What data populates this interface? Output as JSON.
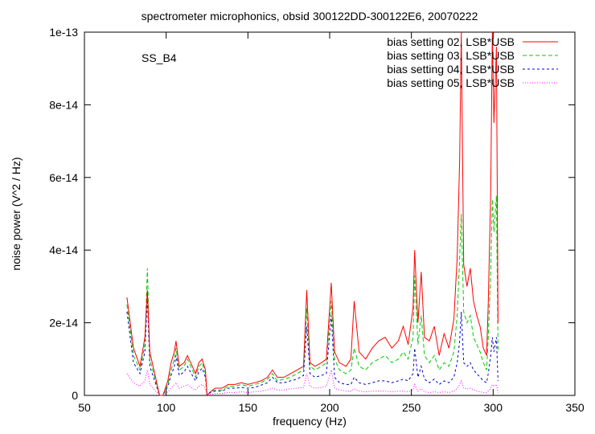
{
  "chart_data": {
    "type": "line",
    "title": "spectrometer microphonics, obsid 300122DD-300122E6, 20070222",
    "annotation": "SS_B4",
    "xlabel": "frequency (Hz)",
    "ylabel": "noise power (V^2 / Hz)",
    "xlim": [
      50,
      350
    ],
    "ylim": [
      0,
      1e-13
    ],
    "x_ticks": [
      50,
      100,
      150,
      200,
      250,
      300,
      350
    ],
    "x_tick_labels": [
      "50",
      "100",
      "150",
      "200",
      "250",
      "300",
      "350"
    ],
    "y_ticks": [
      0,
      2e-14,
      4e-14,
      6e-14,
      8e-14,
      1e-13
    ],
    "y_tick_labels": [
      "0",
      "2e-14",
      "4e-14",
      "6e-14",
      "8e-14",
      "1e-13"
    ],
    "grid": false,
    "legend_position": "top-right",
    "x": [
      76,
      80,
      84,
      87,
      88.5,
      90,
      93,
      96,
      98,
      101,
      103,
      105,
      106,
      108,
      111,
      113,
      116,
      118,
      120,
      122,
      124,
      125,
      127,
      130,
      134,
      138,
      142,
      146,
      150,
      154,
      158,
      162,
      165,
      168,
      172,
      176,
      180,
      184,
      186,
      188,
      191,
      195,
      198,
      201,
      203,
      206,
      210,
      213,
      215,
      218,
      222,
      226,
      230,
      234,
      238,
      242,
      245,
      248,
      251,
      252,
      254,
      256,
      258,
      261,
      264,
      267,
      270,
      273,
      276,
      278,
      279.5,
      280.5,
      282,
      284,
      286,
      288,
      290,
      292,
      294,
      296,
      297,
      298.5,
      299.5,
      300.5,
      302,
      303
    ],
    "series": [
      {
        "name": "bias setting 02, LSB*USB",
        "color": "#ff0000",
        "dash": "solid",
        "values": [
          2.7e-14,
          1.3e-14,
          8e-15,
          1.6e-14,
          2.9e-14,
          1.2e-14,
          6e-15,
          0,
          0,
          4e-15,
          9e-15,
          1.2e-14,
          1.5e-14,
          8e-15,
          9e-15,
          1.1e-14,
          8e-15,
          6e-15,
          9e-15,
          1e-14,
          7e-15,
          0,
          1e-15,
          2e-15,
          2e-15,
          3e-15,
          3e-15,
          3.5e-15,
          3e-15,
          3.5e-15,
          4e-15,
          5e-15,
          7e-15,
          5e-15,
          5e-15,
          6e-15,
          7e-15,
          8e-15,
          2.9e-14,
          9e-15,
          8e-15,
          9e-15,
          1e-14,
          3.1e-14,
          1.2e-14,
          9e-15,
          8e-15,
          1e-14,
          2.6e-14,
          1.2e-14,
          1e-14,
          1.3e-14,
          1.5e-14,
          1.6e-14,
          1.3e-14,
          1.5e-14,
          1.9e-14,
          1.4e-14,
          2.4e-14,
          4e-14,
          2e-14,
          3.4e-14,
          1.6e-14,
          1.5e-14,
          1.9e-14,
          1.1e-14,
          1.7e-14,
          1.3e-14,
          2.1e-14,
          3.8e-14,
          6.5e-14,
          1e-13,
          3.6e-14,
          3e-14,
          3.5e-14,
          2.6e-14,
          2.2e-14,
          1.9e-14,
          1.3e-14,
          1.1e-14,
          2.5e-14,
          5.6e-14,
          1e-13,
          7.5e-14,
          9.6e-14,
          2e-14
        ]
      },
      {
        "name": "bias setting 03, LSB*USB",
        "color": "#00cc00",
        "dash": "dash",
        "values": [
          2.5e-14,
          1.1e-14,
          7e-15,
          1.4e-14,
          3.5e-14,
          1e-14,
          5e-15,
          0,
          0,
          3e-15,
          7e-15,
          1e-14,
          1.3e-14,
          7e-15,
          8e-15,
          1e-14,
          7e-15,
          5e-15,
          8e-15,
          9e-15,
          6e-15,
          0,
          1e-15,
          1.5e-15,
          1.5e-15,
          2.5e-15,
          2.5e-15,
          3e-15,
          2.5e-15,
          3e-15,
          3.5e-15,
          4.5e-15,
          6e-15,
          4e-15,
          4.5e-15,
          5e-15,
          6e-15,
          7e-15,
          2.4e-14,
          8e-15,
          7e-15,
          8e-15,
          9e-15,
          2.6e-14,
          1e-14,
          7e-15,
          6e-15,
          7e-15,
          1.3e-14,
          8e-15,
          7e-15,
          9e-15,
          1e-14,
          1.1e-14,
          9e-15,
          1e-14,
          1.2e-14,
          1e-14,
          1.6e-14,
          3.3e-14,
          1.4e-14,
          2.2e-14,
          1.1e-14,
          9e-15,
          1.1e-14,
          7e-15,
          9e-15,
          8e-15,
          1.2e-14,
          2.2e-14,
          3.8e-14,
          5e-14,
          2.3e-14,
          2e-14,
          2.2e-14,
          1.6e-14,
          1.4e-14,
          1.2e-14,
          9e-15,
          7e-15,
          1.6e-14,
          3.4e-14,
          5.4e-14,
          4.5e-14,
          5.5e-14,
          1.2e-14
        ]
      },
      {
        "name": "bias setting 04, LSB*USB",
        "color": "#0000cc",
        "dash": "shortdash",
        "values": [
          2.3e-14,
          9e-15,
          6e-15,
          1.2e-14,
          2.7e-14,
          8e-15,
          4e-15,
          0,
          0,
          2.5e-15,
          5.5e-15,
          8e-15,
          1.1e-14,
          5.5e-15,
          6.5e-15,
          8e-15,
          5.5e-15,
          4e-15,
          6.5e-15,
          7.5e-15,
          5e-15,
          0,
          8e-16,
          1.2e-15,
          1.2e-15,
          2e-15,
          2e-15,
          2.2e-15,
          2e-15,
          2.2e-15,
          2.8e-15,
          3.5e-15,
          5e-15,
          3.5e-15,
          3.5e-15,
          4e-15,
          4.5e-15,
          5.5e-15,
          1.9e-14,
          6e-15,
          5e-15,
          5.5e-15,
          6e-15,
          2.2e-14,
          5e-15,
          3.5e-15,
          3e-15,
          3e-15,
          5e-15,
          3.5e-15,
          3e-15,
          3.5e-15,
          4e-15,
          4e-15,
          3.5e-15,
          4e-15,
          4.5e-15,
          4e-15,
          6e-15,
          1.3e-14,
          5e-15,
          8e-15,
          4.5e-15,
          3.5e-15,
          4.5e-15,
          3e-15,
          4e-15,
          3.5e-15,
          5e-15,
          9e-15,
          1.5e-14,
          2.3e-14,
          9e-15,
          8e-15,
          9e-15,
          7e-15,
          6e-15,
          5e-15,
          4e-15,
          3.5e-15,
          6e-15,
          1.1e-14,
          1.6e-14,
          1.2e-14,
          1.6e-14,
          4e-15
        ]
      },
      {
        "name": "bias setting 05, LSB*USB",
        "color": "#ff00ff",
        "dash": "dot",
        "values": [
          6e-15,
          3.5e-15,
          2.5e-15,
          4e-15,
          7e-15,
          3e-15,
          1.5e-15,
          0,
          0,
          1e-15,
          2e-15,
          3e-15,
          3.5e-15,
          2e-15,
          2.5e-15,
          3e-15,
          2e-15,
          1.5e-15,
          2.5e-15,
          3e-15,
          2e-15,
          0,
          3e-16,
          5e-16,
          5e-16,
          8e-16,
          8e-16,
          1e-15,
          8e-16,
          1e-15,
          1.2e-15,
          1.5e-15,
          2e-15,
          1.5e-15,
          1.5e-15,
          1.8e-15,
          2e-15,
          2.2e-15,
          6e-15,
          2.5e-15,
          2e-15,
          2.2e-15,
          2.5e-15,
          7e-15,
          2e-15,
          1.5e-15,
          1.2e-15,
          1.2e-15,
          1.8e-15,
          1.2e-15,
          1e-15,
          1.2e-15,
          1.2e-15,
          1.2e-15,
          1e-15,
          1.2e-15,
          1.2e-15,
          1e-15,
          1.5e-15,
          3e-15,
          1.2e-15,
          1.8e-15,
          1e-15,
          8e-16,
          1e-15,
          8e-16,
          1e-15,
          8e-16,
          1.2e-15,
          2e-15,
          3e-15,
          4e-15,
          2e-15,
          1.8e-15,
          2e-15,
          1.5e-15,
          1.2e-15,
          1e-15,
          8e-16,
          8e-16,
          1.2e-15,
          2e-15,
          3e-15,
          2.5e-15,
          3e-15,
          8e-16
        ]
      }
    ]
  }
}
